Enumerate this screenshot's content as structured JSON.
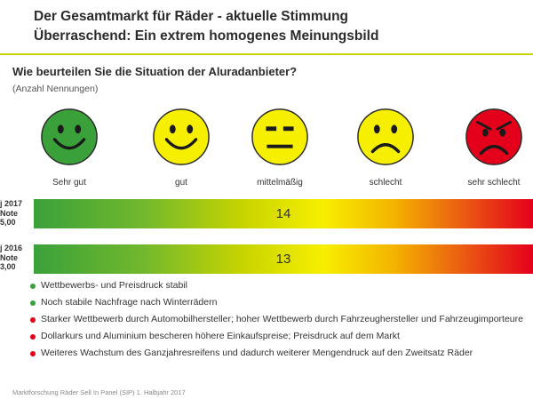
{
  "header": {
    "title_line1": "Der Gesamtmarkt für Räder - aktuelle Stimmung",
    "title_line2": "Überraschend: Ein extrem homogenes Meinungsbild"
  },
  "chart_data": {
    "type": "bar",
    "title": "Wie beurteilen Sie die Situation der Aluradanbieter?",
    "subtitle": "(Anzahl Nennungen)",
    "scale_labels": [
      "Sehr gut",
      "gut",
      "mittelmäßig",
      "schlecht",
      "sehr schlecht"
    ],
    "scale_colors": [
      "#3aa13a",
      "#f7ef00",
      "#f7ef00",
      "#f7ef00",
      "#e4001b"
    ],
    "scale_icons": [
      "happy-face-icon",
      "smiling-face-icon",
      "neutral-face-icon",
      "sad-face-icon",
      "very-sad-face-icon"
    ],
    "rows": [
      {
        "label_line1": "j 2017",
        "label_line2": "Note",
        "label_line3": "5,00",
        "value": 14
      },
      {
        "label_line1": "j 2016",
        "label_line2": "Note",
        "label_line3": "3,00",
        "value": 13
      }
    ],
    "bullets": [
      {
        "text": "Wettbewerbs- und Preisdruck stabil",
        "color": "#3aa13a"
      },
      {
        "text": "Noch stabile Nachfrage nach Winterrädern",
        "color": "#3aa13a"
      },
      {
        "text": "Starker Wettbewerb durch Automobilhersteller; hoher Wettbewerb durch Fahrzeughersteller und Fahrzeugimporteure",
        "color": "#e4001b"
      },
      {
        "text": "Dollarkurs und Aluminium bescheren höhere Einkaufspreise; Preisdruck auf dem Markt",
        "color": "#e4001b"
      },
      {
        "text": "Weiteres Wachstum des Ganzjahresreifens und dadurch weiterer Mengendruck auf den Zweitsatz Räder",
        "color": "#e4001b"
      }
    ]
  },
  "footer": {
    "source": "Marktforschung Räder Sell In Panel (SIP) 1. Halbjahr 2017"
  }
}
